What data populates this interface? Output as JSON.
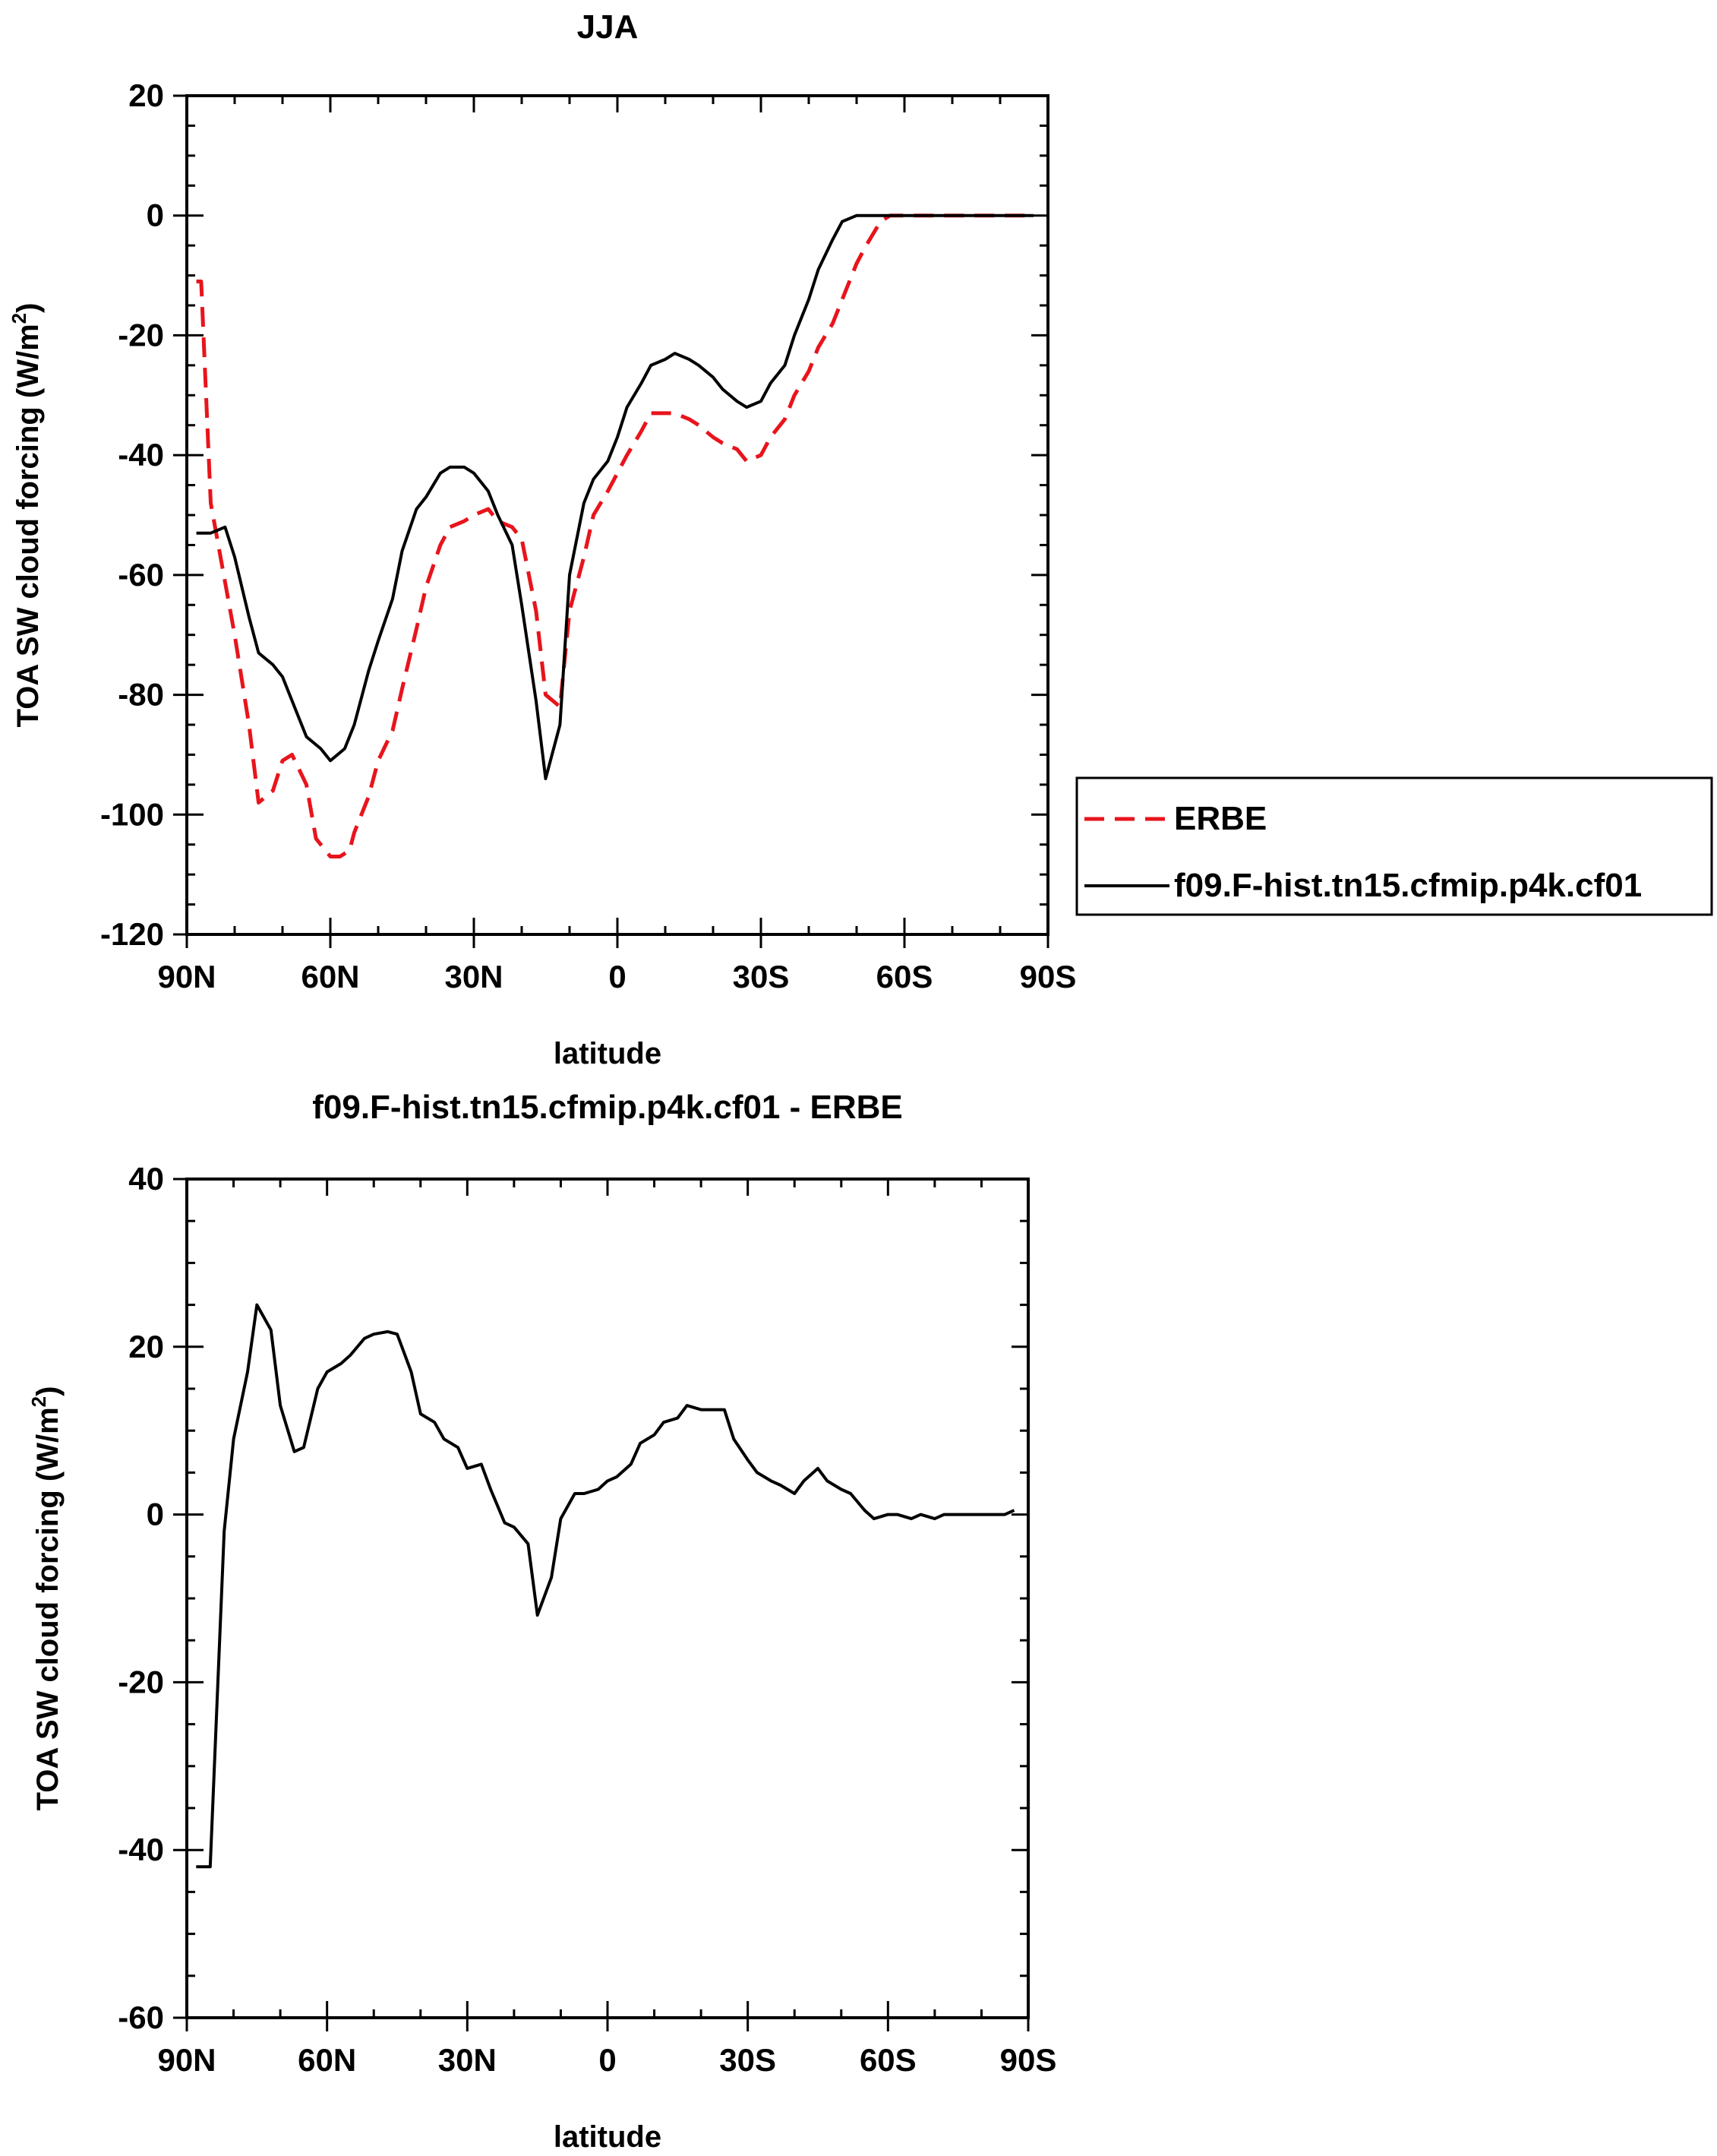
{
  "chart_data": [
    {
      "type": "line",
      "title": "JJA",
      "xlabel": "latitude",
      "ylabel": "TOA SW cloud forcing (W/m",
      "ylabel_sup": "2",
      "ylabel_close": ")",
      "xlim": [
        90,
        -90
      ],
      "ylim": [
        -120,
        20
      ],
      "x_ticks": [
        90,
        60,
        30,
        0,
        -30,
        -60,
        -90
      ],
      "x_tick_labels": [
        "90N",
        "60N",
        "30N",
        "0",
        "30S",
        "60S",
        "90S"
      ],
      "y_ticks": [
        20,
        0,
        -20,
        -40,
        -60,
        -80,
        -100,
        -120
      ],
      "y_tick_labels": [
        "20",
        "0",
        "-20",
        "-40",
        "-60",
        "-80",
        "-100",
        "-120"
      ],
      "legend_position": "right, outside plot",
      "series": [
        {
          "name": "ERBE",
          "color": "#e8141c",
          "dash": "dashed",
          "x": [
            88,
            87,
            85,
            80,
            77,
            75,
            72,
            70,
            68,
            65,
            63,
            60,
            58,
            56,
            55,
            52,
            50,
            47,
            45,
            42,
            40,
            37,
            35,
            32,
            30,
            27,
            25,
            22,
            20,
            17,
            15,
            12,
            10,
            7,
            5,
            2,
            0,
            -2,
            -5,
            -7,
            -10,
            -12,
            -15,
            -17,
            -20,
            -22,
            -25,
            -27,
            -30,
            -32,
            -35,
            -37,
            -40,
            -42,
            -45,
            -47,
            -50,
            -52,
            -55,
            -57,
            -60,
            -62,
            -65,
            -67,
            -70,
            -72,
            -75,
            -77,
            -80,
            -82,
            -85,
            -87
          ],
          "values": [
            -11,
            -11,
            -48,
            -70,
            -85,
            -98,
            -96,
            -91,
            -90,
            -95,
            -104,
            -107,
            -107,
            -106,
            -103,
            -97,
            -91,
            -86,
            -79,
            -69,
            -62,
            -55,
            -52,
            -51,
            -50,
            -49,
            -51,
            -52,
            -54,
            -66,
            -80,
            -82,
            -66,
            -57,
            -50,
            -46,
            -43,
            -40,
            -36,
            -33,
            -33,
            -33,
            -34,
            -35,
            -37,
            -38,
            -39,
            -41,
            -40,
            -37,
            -34,
            -30,
            -26,
            -22,
            -18,
            -14,
            -8,
            -5,
            -1,
            0,
            0,
            0,
            0,
            0,
            0,
            0,
            0,
            0,
            0,
            0,
            0,
            0
          ]
        },
        {
          "name": "f09.F-hist.tn15.cfmip.p4k.cf01",
          "color": "#000000",
          "dash": "solid",
          "x": [
            88,
            87,
            85,
            82,
            80,
            77,
            75,
            72,
            70,
            67,
            65,
            62,
            60,
            57,
            55,
            52,
            50,
            47,
            45,
            42,
            40,
            37,
            35,
            32,
            30,
            27,
            25,
            22,
            20,
            17,
            15,
            12,
            10,
            7,
            5,
            2,
            0,
            -2,
            -5,
            -7,
            -10,
            -12,
            -15,
            -17,
            -20,
            -22,
            -25,
            -27,
            -30,
            -32,
            -35,
            -37,
            -40,
            -42,
            -45,
            -47,
            -50,
            -52,
            -55,
            -57,
            -60,
            -62,
            -65,
            -67,
            -70,
            -72,
            -75,
            -77,
            -80,
            -82,
            -85,
            -87
          ],
          "values": [
            -53,
            -53,
            -53,
            -52,
            -57,
            -67,
            -73,
            -75,
            -77,
            -83,
            -87,
            -89,
            -91,
            -89,
            -85,
            -76,
            -71,
            -64,
            -56,
            -49,
            -47,
            -43,
            -42,
            -42,
            -43,
            -46,
            -50,
            -55,
            -65,
            -81,
            -94,
            -85,
            -60,
            -48,
            -44,
            -41,
            -37,
            -32,
            -28,
            -25,
            -24,
            -23,
            -24,
            -25,
            -27,
            -29,
            -31,
            -32,
            -31,
            -28,
            -25,
            -20,
            -14,
            -9,
            -4,
            -1,
            0,
            0,
            0,
            0,
            0,
            0,
            0,
            0,
            0,
            0,
            0,
            0,
            0,
            0,
            0,
            0
          ]
        }
      ]
    },
    {
      "type": "line",
      "title": "f09.F-hist.tn15.cfmip.p4k.cf01 - ERBE",
      "xlabel": "latitude",
      "ylabel": "TOA SW cloud forcing (W/m",
      "ylabel_sup": "2",
      "ylabel_close": ")",
      "xlim": [
        90,
        -90
      ],
      "ylim": [
        -60,
        40
      ],
      "x_ticks": [
        90,
        60,
        30,
        0,
        -30,
        -60,
        -90
      ],
      "x_tick_labels": [
        "90N",
        "60N",
        "30N",
        "0",
        "30S",
        "60S",
        "90S"
      ],
      "y_ticks": [
        40,
        20,
        0,
        -20,
        -40,
        -60
      ],
      "y_tick_labels": [
        "40",
        "20",
        "0",
        "-20",
        "-40",
        "-60"
      ],
      "series": [
        {
          "name": "f09.F-hist.tn15.cfmip.p4k.cf01 - ERBE",
          "color": "#000000",
          "dash": "solid",
          "x": [
            88,
            87,
            85,
            82,
            80,
            77,
            75,
            72,
            70,
            67,
            65,
            62,
            60,
            57,
            55,
            52,
            50,
            47,
            45,
            42,
            40,
            37,
            35,
            32,
            30,
            27,
            25,
            22,
            20,
            17,
            15,
            12,
            10,
            7,
            5,
            2,
            0,
            -2,
            -5,
            -7,
            -10,
            -12,
            -15,
            -17,
            -20,
            -22,
            -25,
            -27,
            -30,
            -32,
            -35,
            -37,
            -40,
            -42,
            -45,
            -47,
            -50,
            -52,
            -55,
            -57,
            -60,
            -62,
            -65,
            -67,
            -70,
            -72,
            -75,
            -77,
            -80,
            -82,
            -85,
            -87
          ],
          "values": [
            -42,
            -42,
            -42,
            -2,
            9,
            17,
            25,
            22,
            13,
            7.5,
            8,
            15,
            17,
            18,
            19,
            21,
            21.5,
            21.8,
            21.5,
            17,
            12,
            11,
            9,
            8,
            5.5,
            6,
            3,
            -1,
            -1.5,
            -3.5,
            -12,
            -7.5,
            -0.5,
            2.5,
            2.5,
            3,
            4,
            4.5,
            6,
            8.5,
            9.5,
            11,
            11.5,
            13,
            12.5,
            12.5,
            12.5,
            9,
            6.5,
            5,
            4,
            3.5,
            2.5,
            4,
            5.5,
            4,
            3,
            2.5,
            0.5,
            -0.5,
            0,
            0,
            -0.5,
            0,
            -0.5,
            0,
            0,
            0,
            0,
            0,
            0,
            0.5
          ]
        }
      ]
    }
  ]
}
